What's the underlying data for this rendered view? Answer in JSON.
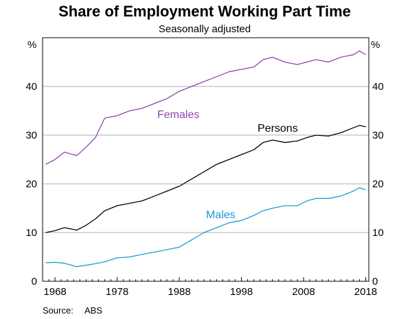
{
  "chart_data": {
    "type": "line",
    "title": "Share of Employment Working Part Time",
    "subtitle": "Seasonally adjusted",
    "yunit_left": "%",
    "yunit_right": "%",
    "xlim": [
      1966.0,
      2018.5
    ],
    "ylim": [
      0,
      50
    ],
    "yticks": [
      0,
      10,
      20,
      30,
      40
    ],
    "xtick_labels": [
      "1968",
      "1978",
      "1988",
      "1998",
      "2008",
      "2018"
    ],
    "xtick_values": [
      1968,
      1978,
      1988,
      1998,
      2008,
      2018
    ],
    "grid": true,
    "source_label": "Source:",
    "source_value": "ABS",
    "series": [
      {
        "name": "Females",
        "color": "#8e44ad",
        "x": [
          1966.5,
          1968.0,
          1969.5,
          1971.5,
          1973.0,
          1974.5,
          1976.0,
          1978.0,
          1980.0,
          1982.0,
          1984.0,
          1986.0,
          1988.0,
          1990.0,
          1992.0,
          1994.0,
          1996.0,
          1998.0,
          2000.0,
          2001.5,
          2003.0,
          2005.0,
          2007.0,
          2008.5,
          2010.0,
          2012.0,
          2014.0,
          2016.0,
          2017.0,
          2018.0
        ],
        "y": [
          24.0,
          25.0,
          26.5,
          25.8,
          27.5,
          29.5,
          33.5,
          34.0,
          35.0,
          35.5,
          36.5,
          37.5,
          39.0,
          40.0,
          41.0,
          42.0,
          43.0,
          43.5,
          44.0,
          45.5,
          46.0,
          45.0,
          44.5,
          45.0,
          45.5,
          45.0,
          46.0,
          46.5,
          47.3,
          46.5
        ]
      },
      {
        "name": "Persons",
        "color": "#000000",
        "x": [
          1966.5,
          1968.0,
          1969.5,
          1971.5,
          1973.0,
          1974.5,
          1976.0,
          1978.0,
          1980.0,
          1982.0,
          1984.0,
          1986.0,
          1988.0,
          1990.0,
          1992.0,
          1994.0,
          1996.0,
          1998.0,
          2000.0,
          2001.5,
          2003.0,
          2005.0,
          2007.0,
          2008.5,
          2010.0,
          2012.0,
          2014.0,
          2016.0,
          2017.0,
          2018.0
        ],
        "y": [
          10.0,
          10.4,
          11.0,
          10.5,
          11.5,
          12.8,
          14.5,
          15.5,
          16.0,
          16.5,
          17.5,
          18.5,
          19.5,
          21.0,
          22.5,
          24.0,
          25.0,
          26.0,
          27.0,
          28.5,
          29.0,
          28.5,
          28.8,
          29.5,
          30.0,
          29.8,
          30.5,
          31.5,
          32.0,
          31.7
        ]
      },
      {
        "name": "Males",
        "color": "#1a9ad6",
        "x": [
          1966.5,
          1968.0,
          1969.5,
          1971.5,
          1973.0,
          1974.5,
          1976.0,
          1978.0,
          1980.0,
          1982.0,
          1984.0,
          1986.0,
          1988.0,
          1990.0,
          1992.0,
          1994.0,
          1996.0,
          1998.0,
          2000.0,
          2001.5,
          2003.0,
          2005.0,
          2007.0,
          2008.5,
          2010.0,
          2012.0,
          2014.0,
          2016.0,
          2017.0,
          2018.0
        ],
        "y": [
          3.8,
          3.9,
          3.7,
          3.0,
          3.3,
          3.6,
          4.0,
          4.8,
          5.0,
          5.5,
          6.0,
          6.5,
          7.0,
          8.5,
          10.0,
          11.0,
          12.0,
          12.5,
          13.5,
          14.5,
          15.0,
          15.5,
          15.5,
          16.5,
          17.0,
          17.0,
          17.5,
          18.5,
          19.2,
          18.8
        ]
      }
    ]
  }
}
